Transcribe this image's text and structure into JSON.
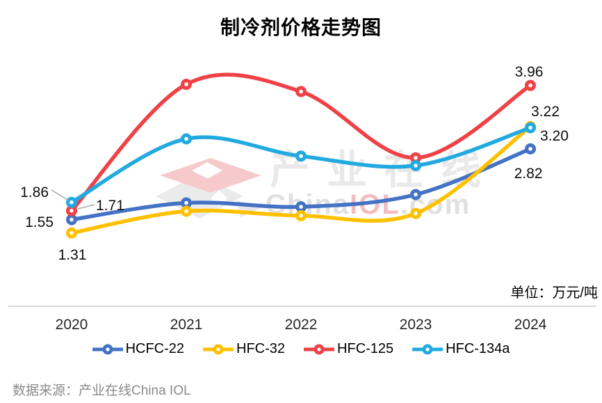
{
  "title": "制冷剂价格走势图",
  "unit_label": "单位：万元/吨",
  "source_label": "数据来源：产业在线China IOL",
  "watermark": {
    "cn": "产业在线",
    "en_china": "China",
    "en_iol": "IOL",
    "en_com": ".com"
  },
  "chart_data": {
    "type": "line",
    "smooth": true,
    "grid": false,
    "legend_position": "bottom",
    "x": [
      "2020",
      "2021",
      "2022",
      "2023",
      "2024"
    ],
    "ylabel": "万元/吨",
    "ylim": [
      1.0,
      4.3
    ],
    "series": [
      {
        "name": "HCFC-22",
        "color": "#4472C4",
        "values": [
          1.55,
          1.85,
          1.78,
          2.0,
          2.82
        ]
      },
      {
        "name": "HFC-32",
        "color": "#FFC000",
        "values": [
          1.31,
          1.7,
          1.62,
          1.66,
          3.22
        ]
      },
      {
        "name": "HFC-125",
        "color": "#EF4146",
        "values": [
          1.71,
          3.98,
          3.85,
          2.66,
          3.96
        ]
      },
      {
        "name": "HFC-134a",
        "color": "#22AAE0",
        "values": [
          1.86,
          3.0,
          2.69,
          2.52,
          3.2
        ]
      }
    ],
    "labeled_points": [
      {
        "series": "HFC-134a",
        "x": "2020",
        "label": "1.86"
      },
      {
        "series": "HFC-125",
        "x": "2020",
        "label": "1.71"
      },
      {
        "series": "HCFC-22",
        "x": "2020",
        "label": "1.55"
      },
      {
        "series": "HFC-32",
        "x": "2020",
        "label": "1.31"
      },
      {
        "series": "HFC-125",
        "x": "2024",
        "label": "3.96"
      },
      {
        "series": "HFC-32",
        "x": "2024",
        "label": "3.22"
      },
      {
        "series": "HFC-134a",
        "x": "2024",
        "label": "3.20"
      },
      {
        "series": "HCFC-22",
        "x": "2024",
        "label": "2.82"
      }
    ]
  }
}
